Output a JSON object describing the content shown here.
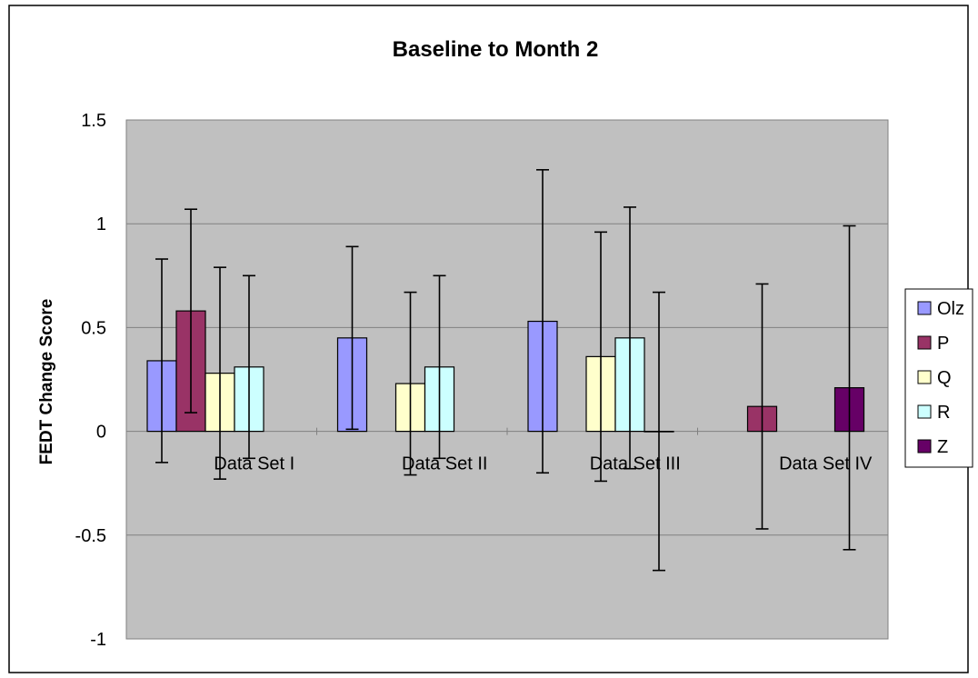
{
  "chart_data": {
    "type": "bar",
    "title": "Baseline to Month 2",
    "xlabel": "",
    "ylabel": "FEDT Change Score",
    "ylim": [
      -1,
      1.5
    ],
    "yticks": [
      -1,
      -0.5,
      0,
      0.5,
      1,
      1.5
    ],
    "ytick_labels": [
      "-1",
      "-0.5",
      "0",
      "0.5",
      "1",
      "1.5"
    ],
    "grid": true,
    "legend_position": "right",
    "categories": [
      "Data Set I",
      "Data Set II",
      "Data Set III",
      "Data Set IV"
    ],
    "series": [
      {
        "name": "Olz",
        "color": "#9999ff",
        "values": [
          0.34,
          0.45,
          0.53,
          null
        ],
        "err_low": [
          -0.15,
          0.01,
          -0.2,
          null
        ],
        "err_high": [
          0.83,
          0.89,
          1.26,
          null
        ]
      },
      {
        "name": "P",
        "color": "#993366",
        "values": [
          0.58,
          null,
          null,
          0.12
        ],
        "err_low": [
          0.09,
          null,
          null,
          -0.47
        ],
        "err_high": [
          1.07,
          null,
          null,
          0.71
        ]
      },
      {
        "name": "Q",
        "color": "#ffffcc",
        "values": [
          0.28,
          0.23,
          0.36,
          null
        ],
        "err_low": [
          -0.23,
          -0.21,
          -0.24,
          null
        ],
        "err_high": [
          0.79,
          0.67,
          0.96,
          null
        ]
      },
      {
        "name": "R",
        "color": "#ccffff",
        "values": [
          0.31,
          0.31,
          0.45,
          null
        ],
        "err_low": [
          -0.13,
          -0.13,
          -0.18,
          null
        ],
        "err_high": [
          0.75,
          0.75,
          1.08,
          null
        ]
      },
      {
        "name": "Z",
        "color": "#660066",
        "values": [
          null,
          null,
          0.0,
          0.21
        ],
        "err_low": [
          null,
          null,
          -0.67,
          -0.57
        ],
        "err_high": [
          null,
          null,
          0.67,
          0.99
        ]
      }
    ],
    "colors": {
      "plot_background": "#c0c0c0",
      "grid": "#808080"
    }
  }
}
